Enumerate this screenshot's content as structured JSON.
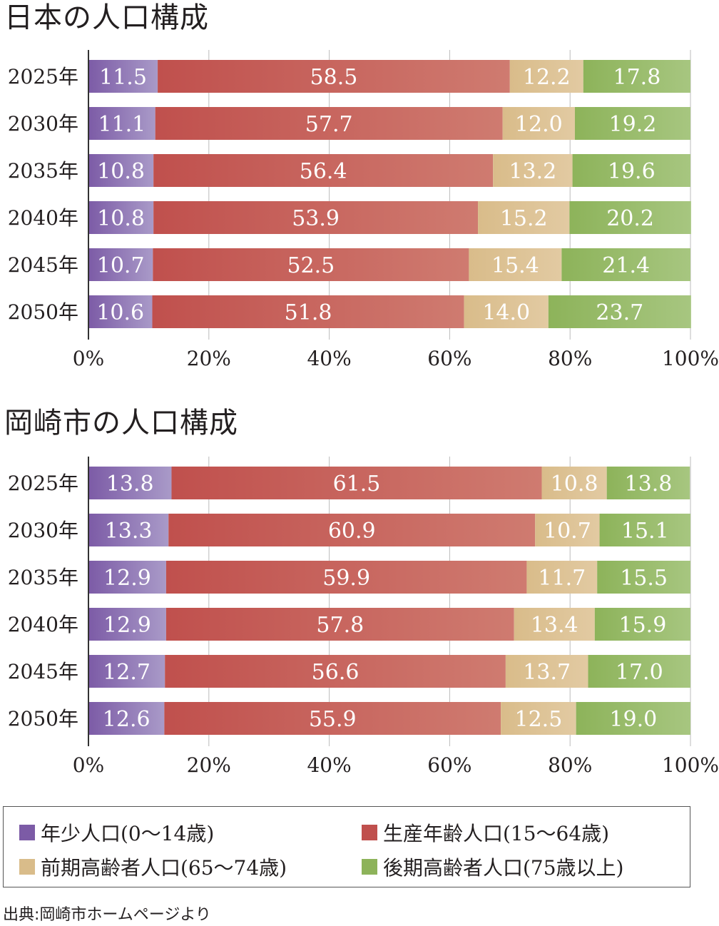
{
  "colors": {
    "youth": "#7c5ba6",
    "working": "#c0504d",
    "early_elderly": "#d9bc8a",
    "late_elderly": "#8db35a",
    "axis": "#333333",
    "grid": "#bbbbbb"
  },
  "chart_data": [
    {
      "type": "bar",
      "orientation": "horizontal",
      "stacked": true,
      "title": "日本の人口構成",
      "categories": [
        "2025年",
        "2030年",
        "2035年",
        "2040年",
        "2045年",
        "2050年"
      ],
      "series": [
        {
          "name": "年少人口(0〜14歳)",
          "values": [
            11.5,
            11.1,
            10.8,
            10.8,
            10.7,
            10.6
          ]
        },
        {
          "name": "生産年齢人口(15〜64歳)",
          "values": [
            58.5,
            57.7,
            56.4,
            53.9,
            52.5,
            51.8
          ]
        },
        {
          "name": "前期高齢者人口(65〜74歳)",
          "values": [
            12.2,
            12.0,
            13.2,
            15.2,
            15.4,
            14.0
          ]
        },
        {
          "name": "後期高齢者人口(75歳以上)",
          "values": [
            17.8,
            19.2,
            19.6,
            20.2,
            21.4,
            23.7
          ]
        }
      ],
      "xlim": [
        0,
        100
      ],
      "xticks": [
        "0%",
        "20%",
        "40%",
        "60%",
        "80%",
        "100%"
      ],
      "grid": true
    },
    {
      "type": "bar",
      "orientation": "horizontal",
      "stacked": true,
      "title": "岡崎市の人口構成",
      "categories": [
        "2025年",
        "2030年",
        "2035年",
        "2040年",
        "2045年",
        "2050年"
      ],
      "series": [
        {
          "name": "年少人口(0〜14歳)",
          "values": [
            13.8,
            13.3,
            12.9,
            12.9,
            12.7,
            12.6
          ]
        },
        {
          "name": "生産年齢人口(15〜64歳)",
          "values": [
            61.5,
            60.9,
            59.9,
            57.8,
            56.6,
            55.9
          ]
        },
        {
          "name": "前期高齢者人口(65〜74歳)",
          "values": [
            10.8,
            10.7,
            11.7,
            13.4,
            13.7,
            12.5
          ]
        },
        {
          "name": "後期高齢者人口(75歳以上)",
          "values": [
            13.8,
            15.1,
            15.5,
            15.9,
            17.0,
            19.0
          ]
        }
      ],
      "xlim": [
        0,
        100
      ],
      "xticks": [
        "0%",
        "20%",
        "40%",
        "60%",
        "80%",
        "100%"
      ],
      "grid": true
    }
  ],
  "legend": {
    "placement": "bottom",
    "items": [
      {
        "label": "年少人口(0〜14歳)",
        "color": "#7c5ba6"
      },
      {
        "label": "生産年齢人口(15〜64歳)",
        "color": "#c0504d"
      },
      {
        "label": "前期高齢者人口(65〜74歳)",
        "color": "#d9bc8a"
      },
      {
        "label": "後期高齢者人口(75歳以上)",
        "color": "#8db35a"
      }
    ]
  },
  "source": "出典:岡崎市ホームページより"
}
